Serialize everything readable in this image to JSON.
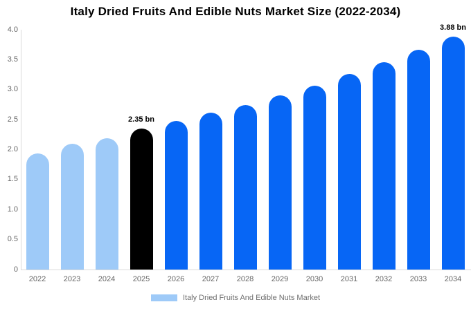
{
  "chart_data": {
    "type": "bar",
    "title": "Italy Dried Fruits And Edible Nuts Market Size (2022-2034)",
    "unit": "bn",
    "categories": [
      "2022",
      "2023",
      "2024",
      "2025",
      "2026",
      "2027",
      "2028",
      "2029",
      "2030",
      "2031",
      "2032",
      "2033",
      "2034"
    ],
    "values": [
      1.94,
      2.1,
      2.19,
      2.35,
      2.48,
      2.62,
      2.74,
      2.9,
      3.07,
      3.26,
      3.46,
      3.67,
      3.88
    ],
    "bar_colors": [
      "#9ecaf8",
      "#9ecaf8",
      "#9ecaf8",
      "#000000",
      "#0766f5",
      "#0766f5",
      "#0766f5",
      "#0766f5",
      "#0766f5",
      "#0766f5",
      "#0766f5",
      "#0766f5",
      "#0766f5"
    ],
    "annotations": [
      {
        "category": "2025",
        "label": "2.35 bn"
      },
      {
        "category": "2034",
        "label": "3.88 bn"
      }
    ],
    "xlabel": "",
    "ylabel": "",
    "ylim": [
      0,
      4
    ],
    "ytick_labels": [
      "0",
      "0.5",
      "1.0",
      "1.5",
      "2.0",
      "2.5",
      "3.0",
      "3.5",
      "4.0"
    ],
    "grid": false,
    "legend": {
      "label": "Italy Dried Fruits And Edible Nuts Market",
      "swatch_color": "#9ecaf8",
      "position": "bottom"
    }
  },
  "colors": {
    "axis_line": "#d9d9d9",
    "tick_text": "#666666",
    "annotation_text": "#000000",
    "background": "#ffffff"
  }
}
